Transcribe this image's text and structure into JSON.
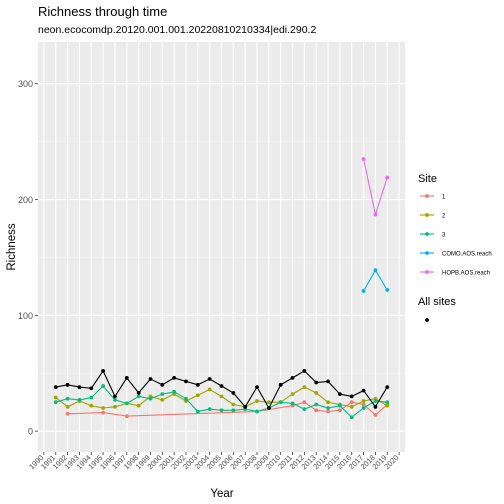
{
  "chart_data": {
    "type": "line",
    "title": "Richness through time",
    "subtitle": "neon.ecocomdp.20120.001.001.20220810210334|edi.290.2",
    "xlabel": "Year",
    "ylabel": "Richness",
    "ylim": [
      0,
      330
    ],
    "yticks": [
      0,
      100,
      200,
      300
    ],
    "x_ticks": [
      "1990",
      "1991",
      "1992",
      "1993",
      "1994",
      "1995",
      "1996",
      "1997",
      "1998",
      "1999",
      "2000",
      "2001",
      "2002",
      "2003",
      "2004",
      "2005",
      "2006",
      "2007",
      "2008",
      "2009",
      "2010",
      "2011",
      "2012",
      "2013",
      "2014",
      "2015",
      "2016",
      "2017",
      "2018",
      "2019",
      "2020"
    ],
    "grid": true,
    "legend_position": "right",
    "legend_title": "Site",
    "legend2_title": "All sites",
    "series": [
      {
        "name": "1",
        "color": "#F8766D",
        "x": [
          1992,
          1995,
          1997,
          2008,
          2011,
          2012,
          2013,
          2014,
          2015,
          2016,
          2017,
          2018,
          2019
        ],
        "y": [
          15,
          16,
          13,
          17,
          22,
          25,
          18,
          17,
          18,
          25,
          23,
          14,
          23
        ]
      },
      {
        "name": "2",
        "color": "#A3A500",
        "x": [
          1991,
          1992,
          1993,
          1994,
          1995,
          1996,
          1997,
          1998,
          1999,
          2000,
          2001,
          2002,
          2003,
          2004,
          2005,
          2006,
          2007,
          2008,
          2009,
          2010,
          2011,
          2012,
          2013,
          2014,
          2015,
          2016,
          2017,
          2018,
          2019
        ],
        "y": [
          29,
          21,
          26,
          22,
          20,
          21,
          24,
          22,
          30,
          27,
          32,
          26,
          31,
          36,
          30,
          23,
          21,
          26,
          25,
          25,
          32,
          38,
          33,
          25,
          23,
          21,
          26,
          28,
          22
        ]
      },
      {
        "name": "3",
        "color": "#00BF7D",
        "x": [
          1991,
          1992,
          1993,
          1994,
          1995,
          1996,
          1997,
          1998,
          1999,
          2000,
          2001,
          2002,
          2003,
          2004,
          2005,
          2006,
          2007,
          2008,
          2009,
          2010,
          2011,
          2012,
          2013,
          2014,
          2015,
          2016,
          2017,
          2018,
          2019
        ],
        "y": [
          25,
          28,
          27,
          29,
          39,
          27,
          24,
          30,
          28,
          32,
          34,
          28,
          17,
          19,
          18,
          18,
          19,
          17,
          20,
          25,
          24,
          19,
          23,
          20,
          22,
          12,
          20,
          26,
          25
        ]
      },
      {
        "name": "COMO.AOS.reach",
        "color": "#00B0F6",
        "x": [
          2017,
          2018,
          2019
        ],
        "y": [
          121,
          139,
          122
        ]
      },
      {
        "name": "HOPB.AOS.reach",
        "color": "#E76BF3",
        "x": [
          2017,
          2018,
          2019
        ],
        "y": [
          235,
          187,
          219
        ]
      },
      {
        "name": "All sites",
        "color": "#000000",
        "x": [
          1991,
          1992,
          1993,
          1994,
          1995,
          1996,
          1997,
          1998,
          1999,
          2000,
          2001,
          2002,
          2003,
          2004,
          2005,
          2006,
          2007,
          2008,
          2009,
          2010,
          2011,
          2012,
          2013,
          2014,
          2015,
          2016,
          2017,
          2018,
          2019
        ],
        "y": [
          38,
          40,
          38,
          37,
          52,
          30,
          46,
          33,
          45,
          40,
          46,
          43,
          40,
          45,
          39,
          33,
          21,
          38,
          20,
          40,
          46,
          52,
          42,
          43,
          32,
          30,
          35,
          21,
          38
        ]
      }
    ]
  }
}
